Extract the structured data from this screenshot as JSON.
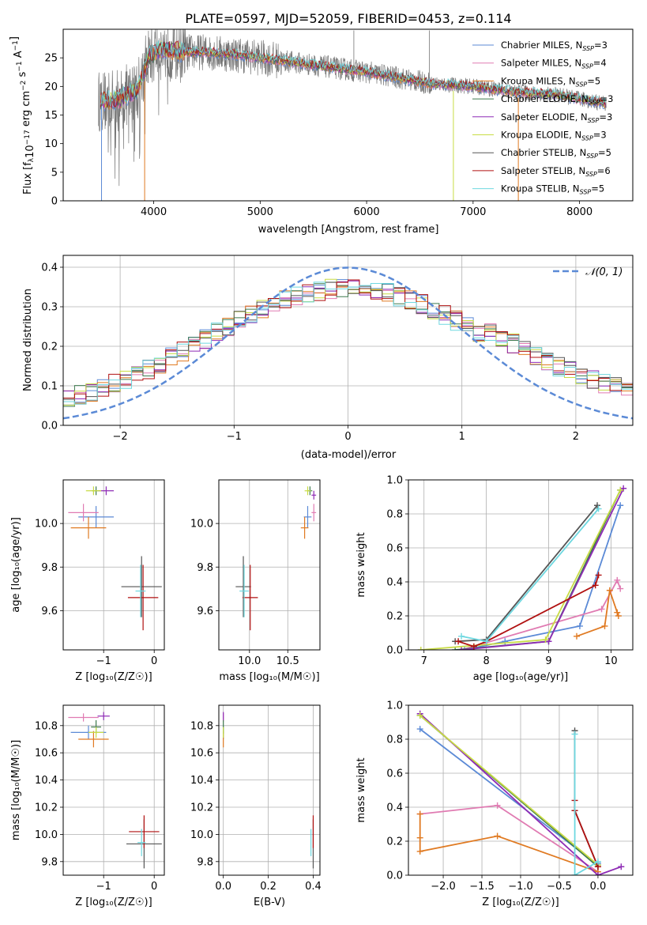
{
  "figure_title": "PLATE=0597, MJD=52059, FIBERID=0453, z=0.114",
  "colors": {
    "Chabrier MILES": "#5b8ad6",
    "Salpeter MILES": "#e07bb2",
    "Kroupa MILES": "#e07a22",
    "Chabrier ELODIE": "#3f7a4f",
    "Salpeter ELODIE": "#8e2bb5",
    "Kroupa ELODIE": "#c8dc45",
    "Chabrier STELIB": "#555555",
    "Salpeter STELIB": "#b01010",
    "Kroupa STELIB": "#6fd8e0"
  },
  "chart_data": [
    {
      "id": "spectrum",
      "type": "line",
      "xlabel": "wavelength [Angstrom, rest frame]",
      "ylabel": "Flux [f_λ10^-17 erg cm^-2 s^-1 A^-1]",
      "xlim": [
        3150,
        8500
      ],
      "ylim": [
        0,
        30
      ],
      "xticks": [
        4000,
        5000,
        6000,
        7000,
        8000
      ],
      "yticks": [
        0,
        5,
        10,
        15,
        20,
        25
      ],
      "legend_position": "upper-right",
      "legend": [
        {
          "name": "Chabrier MILES",
          "sub": "N",
          "subscript": "SSP",
          "value": "=3"
        },
        {
          "name": "Salpeter MILES",
          "sub": "N",
          "subscript": "SSP",
          "value": "=4"
        },
        {
          "name": "Kroupa MILES",
          "sub": "N",
          "subscript": "SSP",
          "value": "=5"
        },
        {
          "name": "Chabrier ELODIE",
          "sub": "N",
          "subscript": "SSP",
          "value": "=3"
        },
        {
          "name": "Salpeter ELODIE",
          "sub": "N",
          "subscript": "SSP",
          "value": "=3"
        },
        {
          "name": "Kroupa ELODIE",
          "sub": "N",
          "subscript": "SSP",
          "value": "=3"
        },
        {
          "name": "Chabrier STELIB",
          "sub": "N",
          "subscript": "SSP",
          "value": "=5"
        },
        {
          "name": "Salpeter STELIB",
          "sub": "N",
          "subscript": "SSP",
          "value": "=6"
        },
        {
          "name": "Kroupa STELIB",
          "sub": "N",
          "subscript": "SSP",
          "value": "=5"
        }
      ],
      "continuum": {
        "x": [
          3500,
          3650,
          3750,
          3850,
          3950,
          4050,
          4300,
          4500,
          4800,
          5200,
          5600,
          6000,
          6300,
          6600,
          7000,
          7400,
          7800,
          8000,
          8250
        ],
        "y": [
          17.5,
          17.5,
          18.5,
          19.5,
          25,
          26.5,
          26,
          26,
          25.5,
          24.5,
          23.5,
          22.5,
          21.5,
          20.5,
          20,
          19,
          18.5,
          17.8,
          17
        ]
      },
      "data_range": [
        3480,
        8250
      ],
      "model_range": [
        3500,
        8250
      ],
      "drops": [
        [
          3510,
          0
        ],
        [
          3915,
          0
        ],
        [
          6815,
          0
        ],
        [
          7425,
          0
        ]
      ],
      "spikes": [
        [
          5880,
          29.8
        ],
        [
          6590,
          29.8
        ]
      ]
    },
    {
      "id": "residual-histogram",
      "type": "step",
      "xlabel": "(data-model)/error",
      "ylabel": "Normed distribution",
      "xlim": [
        -2.5,
        2.5
      ],
      "ylim": [
        0,
        0.43
      ],
      "xticks": [
        -2,
        -1,
        0,
        1,
        2
      ],
      "yticks": [
        0,
        0.1,
        0.2,
        0.3,
        0.4
      ],
      "legend_position": "upper-right",
      "reference_curve": {
        "name": "𝒩(0, 1)",
        "mean": 0,
        "sigma": 1
      },
      "bin_width": 0.1,
      "bin_start": -2.5
    },
    {
      "id": "age-vs-Z",
      "type": "errorbar",
      "xlabel": "Z [log₁₀(Z/Z☉)]",
      "ylabel": "age  [log₁₀(age/yr)]",
      "xlim": [
        -1.8,
        0.2
      ],
      "ylim": [
        9.42,
        10.2
      ],
      "xticks": [
        -1,
        0
      ],
      "yticks": [
        9.6,
        9.8,
        10.0
      ],
      "points": [
        {
          "model": "Chabrier MILES",
          "x": -1.15,
          "xerr": 0.35,
          "y": 10.03,
          "yerr": 0.05
        },
        {
          "model": "Salpeter MILES",
          "x": -1.4,
          "xerr": 0.3,
          "y": 10.05,
          "yerr": 0.04
        },
        {
          "model": "Kroupa MILES",
          "x": -1.3,
          "xerr": 0.35,
          "y": 9.98,
          "yerr": 0.05
        },
        {
          "model": "Chabrier ELODIE",
          "x": -1.15,
          "xerr": 0.08,
          "y": 10.15,
          "yerr": 0.02
        },
        {
          "model": "Salpeter ELODIE",
          "x": -0.95,
          "xerr": 0.15,
          "y": 10.15,
          "yerr": 0.02
        },
        {
          "model": "Kroupa ELODIE",
          "x": -1.2,
          "xerr": 0.15,
          "y": 10.15,
          "yerr": 0.02
        },
        {
          "model": "Chabrier STELIB",
          "x": -0.25,
          "xerr": 0.4,
          "y": 9.71,
          "yerr": 0.14
        },
        {
          "model": "Salpeter STELIB",
          "x": -0.22,
          "xerr": 0.3,
          "y": 9.66,
          "yerr": 0.15
        },
        {
          "model": "Kroupa STELIB",
          "x": -0.27,
          "xerr": 0.1,
          "y": 9.69,
          "yerr": 0.12
        }
      ]
    },
    {
      "id": "age-vs-mass",
      "type": "errorbar",
      "xlabel": "mass [log₁₀(M/M☉)]",
      "ylabel": "",
      "xlim": [
        9.6,
        10.92
      ],
      "ylim": [
        9.42,
        10.2
      ],
      "xticks": [
        10.0,
        10.5
      ],
      "yticks": [
        9.6,
        9.8,
        10.0
      ],
      "points": [
        {
          "model": "Chabrier MILES",
          "x": 10.76,
          "xerr": 0.05,
          "y": 10.03,
          "yerr": 0.05
        },
        {
          "model": "Salpeter MILES",
          "x": 10.84,
          "xerr": 0.03,
          "y": 10.05,
          "yerr": 0.04
        },
        {
          "model": "Kroupa MILES",
          "x": 10.72,
          "xerr": 0.05,
          "y": 9.98,
          "yerr": 0.05
        },
        {
          "model": "Chabrier ELODIE",
          "x": 10.79,
          "xerr": 0.03,
          "y": 10.15,
          "yerr": 0.02
        },
        {
          "model": "Salpeter ELODIE",
          "x": 10.84,
          "xerr": 0.03,
          "y": 10.13,
          "yerr": 0.02
        },
        {
          "model": "Kroupa ELODIE",
          "x": 10.76,
          "xerr": 0.04,
          "y": 10.15,
          "yerr": 0.02
        },
        {
          "model": "Chabrier STELIB",
          "x": 9.92,
          "xerr": 0.1,
          "y": 9.71,
          "yerr": 0.14
        },
        {
          "model": "Salpeter STELIB",
          "x": 10.01,
          "xerr": 0.1,
          "y": 9.66,
          "yerr": 0.15
        },
        {
          "model": "Kroupa STELIB",
          "x": 9.93,
          "xerr": 0.06,
          "y": 9.69,
          "yerr": 0.12
        }
      ]
    },
    {
      "id": "mass-weight-vs-age",
      "type": "line",
      "xlabel": "age  [log₁₀(age/yr)]",
      "ylabel": "mass weight",
      "xlim": [
        6.75,
        10.35
      ],
      "ylim": [
        0,
        1
      ],
      "xticks": [
        7,
        8,
        9,
        10
      ],
      "yticks": [
        0.0,
        0.2,
        0.4,
        0.6,
        0.8,
        1.0
      ],
      "series": [
        {
          "model": "Chabrier MILES",
          "x": [
            7.65,
            8.3,
            9.5,
            10.15
          ],
          "y": [
            0.0,
            0.05,
            0.14,
            0.85
          ]
        },
        {
          "model": "Salpeter MILES",
          "x": [
            7.6,
            9.85,
            10.1,
            10.15
          ],
          "y": [
            0.0,
            0.24,
            0.41,
            0.36
          ]
        },
        {
          "model": "Kroupa MILES",
          "x": [
            9.45,
            9.9,
            9.98,
            10.1,
            10.12
          ],
          "y": [
            0.08,
            0.14,
            0.35,
            0.22,
            0.2
          ]
        },
        {
          "model": "Chabrier ELODIE",
          "x": [
            7.5,
            9.0,
            10.15
          ],
          "y": [
            0.0,
            0.05,
            0.94
          ]
        },
        {
          "model": "Salpeter ELODIE",
          "x": [
            7.6,
            9.0,
            10.2
          ],
          "y": [
            0.0,
            0.05,
            0.95
          ]
        },
        {
          "model": "Kroupa ELODIE",
          "x": [
            6.95,
            8.95,
            10.15
          ],
          "y": [
            0.0,
            0.06,
            0.94
          ]
        },
        {
          "model": "Chabrier STELIB",
          "x": [
            7.5,
            8.0,
            9.78
          ],
          "y": [
            0.05,
            0.06,
            0.85
          ]
        },
        {
          "model": "Salpeter STELIB",
          "x": [
            7.55,
            7.8,
            8.0,
            9.75,
            9.8
          ],
          "y": [
            0.05,
            0.02,
            0.05,
            0.38,
            0.44
          ]
        },
        {
          "model": "Kroupa STELIB",
          "x": [
            7.6,
            8.0,
            9.8
          ],
          "y": [
            0.08,
            0.05,
            0.83
          ]
        }
      ]
    },
    {
      "id": "mass-vs-Z",
      "type": "errorbar",
      "xlabel": "Z [log₁₀(Z/Z☉)]",
      "ylabel": "mass [log₁₀(M/M☉)]",
      "xlim": [
        -1.8,
        0.2
      ],
      "ylim": [
        9.7,
        10.95
      ],
      "xticks": [
        -1,
        0
      ],
      "yticks": [
        9.8,
        10.0,
        10.2,
        10.4,
        10.6,
        10.8
      ],
      "points": [
        {
          "model": "Chabrier MILES",
          "x": -1.3,
          "xerr": 0.35,
          "y": 10.75,
          "yerr": 0.05
        },
        {
          "model": "Salpeter MILES",
          "x": -1.4,
          "xerr": 0.3,
          "y": 10.86,
          "yerr": 0.03
        },
        {
          "model": "Kroupa MILES",
          "x": -1.2,
          "xerr": 0.3,
          "y": 10.7,
          "yerr": 0.06
        },
        {
          "model": "Chabrier ELODIE",
          "x": -1.15,
          "xerr": 0.1,
          "y": 10.79,
          "yerr": 0.05
        },
        {
          "model": "Salpeter ELODIE",
          "x": -1.0,
          "xerr": 0.12,
          "y": 10.87,
          "yerr": 0.03
        },
        {
          "model": "Kroupa ELODIE",
          "x": -1.15,
          "xerr": 0.15,
          "y": 10.75,
          "yerr": 0.04
        },
        {
          "model": "Chabrier STELIB",
          "x": -0.2,
          "xerr": 0.35,
          "y": 9.93,
          "yerr": 0.18
        },
        {
          "model": "Salpeter STELIB",
          "x": -0.2,
          "xerr": 0.3,
          "y": 10.02,
          "yerr": 0.12
        },
        {
          "model": "Kroupa STELIB",
          "x": -0.25,
          "xerr": 0.08,
          "y": 9.94,
          "yerr": 0.1
        }
      ]
    },
    {
      "id": "mass-vs-EBV",
      "type": "errorbar",
      "xlabel": "E(B-V)",
      "ylabel": "",
      "xlim": [
        -0.02,
        0.43
      ],
      "ylim": [
        9.7,
        10.95
      ],
      "xticks": [
        0.0,
        0.2,
        0.4
      ],
      "yticks": [
        9.8,
        10.0,
        10.2,
        10.4,
        10.6,
        10.8
      ],
      "points": [
        {
          "model": "Chabrier MILES",
          "x": 0.0,
          "xerr": 0,
          "y": 10.75,
          "yerr": 0.05
        },
        {
          "model": "Salpeter MILES",
          "x": 0.0,
          "xerr": 0,
          "y": 10.86,
          "yerr": 0.03
        },
        {
          "model": "Kroupa MILES",
          "x": 0.0,
          "xerr": 0,
          "y": 10.7,
          "yerr": 0.06
        },
        {
          "model": "Chabrier ELODIE",
          "x": 0.0,
          "xerr": 0,
          "y": 10.79,
          "yerr": 0.05
        },
        {
          "model": "Salpeter ELODIE",
          "x": 0.0,
          "xerr": 0,
          "y": 10.87,
          "yerr": 0.03
        },
        {
          "model": "Kroupa ELODIE",
          "x": 0.0,
          "xerr": 0,
          "y": 10.75,
          "yerr": 0.04
        },
        {
          "model": "Chabrier STELIB",
          "x": 0.4,
          "xerr": 0,
          "y": 9.93,
          "yerr": 0.18
        },
        {
          "model": "Salpeter STELIB",
          "x": 0.4,
          "xerr": 0,
          "y": 10.02,
          "yerr": 0.12
        },
        {
          "model": "Kroupa STELIB",
          "x": 0.39,
          "xerr": 0,
          "y": 9.94,
          "yerr": 0.1
        }
      ]
    },
    {
      "id": "mass-weight-vs-Z",
      "type": "line",
      "xlabel": "Z [log₁₀(Z/Z☉)]",
      "ylabel": "mass weight",
      "xlim": [
        -2.45,
        0.45
      ],
      "ylim": [
        0,
        1
      ],
      "xticks": [
        -2.0,
        -1.5,
        -1.0,
        -0.5,
        0.0
      ],
      "yticks": [
        0.0,
        0.2,
        0.4,
        0.6,
        0.8,
        1.0
      ],
      "series": [
        {
          "model": "Chabrier MILES",
          "x": [
            -2.3,
            0.0,
            0.0
          ],
          "y": [
            0.86,
            0.06,
            0.07
          ]
        },
        {
          "model": "Salpeter MILES",
          "x": [
            -2.3,
            -1.3,
            0.0
          ],
          "y": [
            0.36,
            0.41,
            0.02
          ]
        },
        {
          "model": "Kroupa MILES",
          "x": [
            -2.3,
            -2.3,
            -2.3,
            -1.3,
            0.0
          ],
          "y": [
            0.36,
            0.22,
            0.14,
            0.23,
            0.02
          ]
        },
        {
          "model": "Chabrier ELODIE",
          "x": [
            -2.3,
            0.0
          ],
          "y": [
            0.94,
            0.05
          ]
        },
        {
          "model": "Salpeter ELODIE",
          "x": [
            -2.3,
            0.0,
            0.3
          ],
          "y": [
            0.95,
            0.0,
            0.05
          ]
        },
        {
          "model": "Kroupa ELODIE",
          "x": [
            -2.3,
            0.0
          ],
          "y": [
            0.94,
            0.06
          ]
        },
        {
          "model": "Chabrier STELIB",
          "x": [
            -0.3,
            -0.3,
            0.0
          ],
          "y": [
            0.85,
            0.38,
            0.05
          ]
        },
        {
          "model": "Salpeter STELIB",
          "x": [
            -0.3,
            -0.3,
            0.0
          ],
          "y": [
            0.44,
            0.38,
            0.05
          ]
        },
        {
          "model": "Kroupa STELIB",
          "x": [
            -0.3,
            -0.3,
            0.0
          ],
          "y": [
            0.83,
            0.0,
            0.08
          ]
        }
      ]
    }
  ]
}
